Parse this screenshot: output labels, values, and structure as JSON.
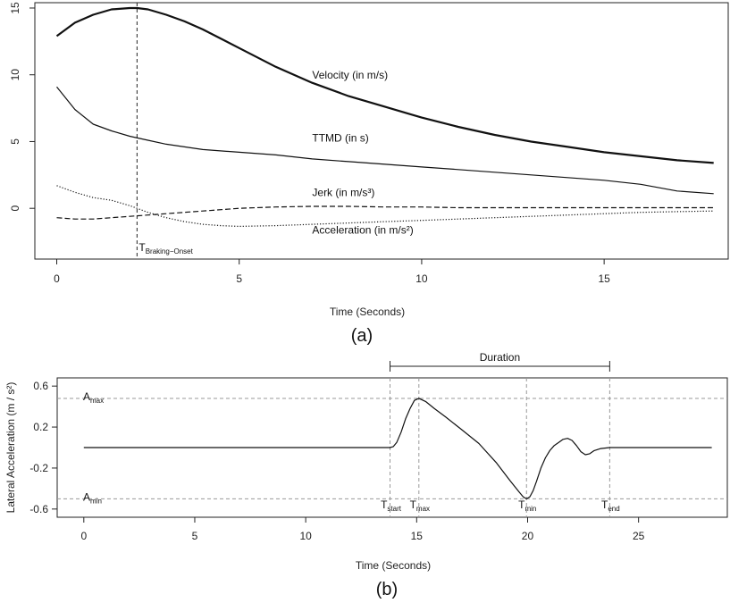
{
  "chart_data": [
    {
      "type": "line",
      "panel_label": "(a)",
      "xlabel": "Time (Seconds)",
      "ylabel": "",
      "xlim": [
        -0.6,
        18.4
      ],
      "ylim": [
        -3.8,
        15.4
      ],
      "xticks": [
        0,
        5,
        10,
        15
      ],
      "yticks": [
        0,
        5,
        10,
        15
      ],
      "series": [
        {
          "name": "Velocity (in m/s)",
          "style": "solid",
          "width": 2.2,
          "x": [
            0,
            0.5,
            1,
            1.5,
            2,
            2.2,
            2.5,
            3,
            3.5,
            4,
            5,
            6,
            7,
            8,
            9,
            10,
            11,
            12,
            13,
            14,
            15,
            16,
            17,
            18
          ],
          "y": [
            12.9,
            13.9,
            14.5,
            14.9,
            15.0,
            15.0,
            14.9,
            14.5,
            14.0,
            13.4,
            12.0,
            10.6,
            9.4,
            8.4,
            7.6,
            6.8,
            6.1,
            5.5,
            5.0,
            4.6,
            4.2,
            3.9,
            3.6,
            3.4
          ]
        },
        {
          "name": "TTMD (in s)",
          "style": "solid",
          "width": 1.2,
          "x": [
            0,
            0.5,
            1,
            1.5,
            2,
            2.5,
            3,
            4,
            5,
            6,
            7,
            8,
            9,
            10,
            11,
            12,
            13,
            14,
            15,
            16,
            17,
            18
          ],
          "y": [
            9.1,
            7.4,
            6.3,
            5.8,
            5.4,
            5.1,
            4.8,
            4.4,
            4.2,
            4.0,
            3.7,
            3.5,
            3.3,
            3.1,
            2.9,
            2.7,
            2.5,
            2.3,
            2.1,
            1.8,
            1.3,
            1.1
          ]
        },
        {
          "name": "Jerk (in m/s³)",
          "style": "dashed",
          "width": 1.2,
          "x": [
            0,
            0.5,
            1,
            1.5,
            2,
            2.5,
            3,
            4,
            5,
            6,
            7,
            8,
            9,
            10,
            11,
            12,
            13,
            14,
            15,
            16,
            17,
            18
          ],
          "y": [
            -0.7,
            -0.8,
            -0.8,
            -0.7,
            -0.6,
            -0.5,
            -0.4,
            -0.2,
            0.0,
            0.1,
            0.15,
            0.15,
            0.1,
            0.1,
            0.05,
            0.05,
            0.05,
            0.05,
            0.05,
            0.05,
            0.05,
            0.05
          ]
        },
        {
          "name": "Acceleration (in m/s²)",
          "style": "dotted",
          "width": 1.2,
          "x": [
            0,
            0.5,
            1,
            1.5,
            2,
            2.5,
            3,
            3.5,
            4,
            4.5,
            5,
            6,
            7,
            8,
            9,
            10,
            11,
            12,
            13,
            14,
            15,
            16,
            17,
            18
          ],
          "y": [
            1.7,
            1.2,
            0.8,
            0.6,
            0.2,
            -0.3,
            -0.7,
            -1.0,
            -1.2,
            -1.3,
            -1.35,
            -1.3,
            -1.2,
            -1.1,
            -1.0,
            -0.9,
            -0.8,
            -0.7,
            -0.6,
            -0.5,
            -0.4,
            -0.3,
            -0.25,
            -0.2
          ]
        }
      ],
      "labels": [
        {
          "text": "Velocity (in m/s)",
          "x": 7.0,
          "y": 9.7
        },
        {
          "text": "TTMD (in s)",
          "x": 7.0,
          "y": 5.0
        },
        {
          "text": "Jerk (in m/s³)",
          "x": 7.0,
          "y": 0.9
        },
        {
          "text": "Acceleration (in m/s²)",
          "x": 7.0,
          "y": -1.9
        }
      ],
      "vline": {
        "x": 2.2,
        "label_main": "T",
        "label_sub": "Braking−Onset"
      }
    },
    {
      "type": "line",
      "panel_label": "(b)",
      "xlabel": "Time (Seconds)",
      "ylabel": "Lateral Acceleration (m / s²)",
      "xlim": [
        -1.2,
        29.0
      ],
      "ylim": [
        -0.68,
        0.68
      ],
      "xticks": [
        0,
        5,
        10,
        15,
        20,
        25
      ],
      "yticks": [
        -0.6,
        -0.2,
        0.2,
        0.6
      ],
      "ytick_labels": [
        "-0.6",
        "-0.2",
        "0.2",
        "0.6"
      ],
      "series": [
        {
          "name": "Lateral Acceleration",
          "style": "solid",
          "width": 1.2,
          "x": [
            0,
            13.8,
            13.95,
            14.1,
            14.3,
            14.5,
            14.7,
            14.9,
            15.1,
            15.4,
            15.8,
            16.3,
            17.0,
            17.8,
            18.6,
            19.2,
            19.6,
            19.8,
            19.95,
            20.1,
            20.25,
            20.4,
            20.6,
            20.8,
            21.0,
            21.2,
            21.4,
            21.6,
            21.8,
            22.0,
            22.2,
            22.4,
            22.6,
            22.8,
            23.0,
            23.3,
            23.7,
            28.3
          ],
          "y": [
            0,
            0,
            0.01,
            0.05,
            0.15,
            0.28,
            0.38,
            0.46,
            0.48,
            0.45,
            0.38,
            0.3,
            0.18,
            0.04,
            -0.15,
            -0.32,
            -0.43,
            -0.48,
            -0.5,
            -0.48,
            -0.42,
            -0.33,
            -0.2,
            -0.1,
            -0.03,
            0.02,
            0.05,
            0.08,
            0.09,
            0.07,
            0.02,
            -0.04,
            -0.07,
            -0.06,
            -0.03,
            -0.01,
            0,
            0
          ]
        }
      ],
      "hlines": [
        {
          "y": 0.48
        },
        {
          "y": -0.5
        }
      ],
      "vlines": [
        {
          "x": 13.8,
          "label_main": "T",
          "label_sub": "start"
        },
        {
          "x": 15.1,
          "label_main": "T",
          "label_sub": "max"
        },
        {
          "x": 19.95,
          "label_main": "T",
          "label_sub": "min"
        },
        {
          "x": 23.7,
          "label_main": "T",
          "label_sub": "end"
        }
      ],
      "level_labels": [
        {
          "main": "A",
          "sub": "max",
          "y": 0.48
        },
        {
          "main": "A",
          "sub": "min",
          "y": -0.5
        }
      ],
      "duration": {
        "label": "Duration",
        "from": 13.8,
        "to": 23.7
      }
    }
  ]
}
